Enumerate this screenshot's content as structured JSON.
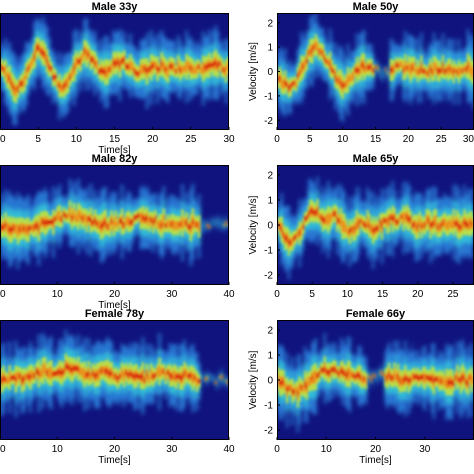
{
  "chart_data": [
    {
      "type": "heatmap",
      "title": "Male 33y",
      "xlabel": "Time[s]",
      "ylabel": "",
      "xlim": [
        0,
        30
      ],
      "ylim": [
        -2.4,
        2.4
      ],
      "xticks": [
        0,
        5,
        10,
        15,
        20,
        25,
        30
      ],
      "yticks": [],
      "colormap": "jet",
      "trace": {
        "x": [
          0,
          1,
          2,
          3,
          4,
          5,
          6,
          7,
          8,
          9,
          10,
          11,
          12,
          13,
          14,
          15,
          16,
          17,
          18,
          19,
          20,
          21,
          22,
          23,
          24,
          25,
          26,
          27,
          28,
          29,
          30
        ],
        "y": [
          0.2,
          -0.2,
          -0.8,
          -0.4,
          0.4,
          1.0,
          0.6,
          -0.2,
          -0.8,
          -0.3,
          0.3,
          0.8,
          0.5,
          0.1,
          0.0,
          0.3,
          0.4,
          0.2,
          0.0,
          0.1,
          0.2,
          0.2,
          0.1,
          0.1,
          0.2,
          0.2,
          0.1,
          0.2,
          0.3,
          0.2,
          0.1
        ],
        "gaps": []
      }
    },
    {
      "type": "heatmap",
      "title": "Male 50y",
      "xlabel": "",
      "ylabel": "Velocity [m/s]",
      "xlim": [
        0,
        30
      ],
      "ylim": [
        -2.4,
        2.4
      ],
      "xticks": [
        0,
        5,
        10,
        15,
        20,
        25,
        30
      ],
      "yticks": [
        2,
        1,
        0,
        -1,
        -2
      ],
      "colormap": "jet",
      "trace": {
        "x": [
          0,
          1,
          2,
          3,
          4,
          5,
          6,
          7,
          8,
          9,
          10,
          11,
          12,
          13,
          14,
          15,
          16,
          17,
          18,
          19,
          20,
          21,
          22,
          23,
          24,
          25,
          26,
          27,
          28,
          29,
          30
        ],
        "y": [
          -0.2,
          -0.5,
          -0.6,
          -0.4,
          0.3,
          0.8,
          1.0,
          0.7,
          0.2,
          -0.3,
          -0.6,
          -0.4,
          0.0,
          0.2,
          0.1,
          0.1,
          0.0,
          0.0,
          0.2,
          0.2,
          0.1,
          0.1,
          0.1,
          0.0,
          0.1,
          0.1,
          0.0,
          0.1,
          0.0,
          0.1,
          0.0
        ],
        "gaps": [
          [
            14.8,
            17.2
          ]
        ]
      }
    },
    {
      "type": "heatmap",
      "title": "Male 82y",
      "xlabel": "Time[s]",
      "ylabel": "",
      "xlim": [
        0,
        40
      ],
      "ylim": [
        -2.4,
        2.4
      ],
      "xticks": [
        0,
        10,
        20,
        30,
        40
      ],
      "yticks": [],
      "colormap": "jet",
      "trace": {
        "x": [
          0,
          2,
          4,
          6,
          8,
          10,
          12,
          14,
          16,
          18,
          20,
          22,
          24,
          26,
          28,
          30,
          32,
          34,
          36,
          38,
          40
        ],
        "y": [
          -0.1,
          -0.1,
          -0.2,
          -0.1,
          0.1,
          0.3,
          0.4,
          0.3,
          0.1,
          0.0,
          0.1,
          0.1,
          0.3,
          0.2,
          0.1,
          0.0,
          0.0,
          0.0,
          0.0,
          0.0,
          0.0
        ],
        "gaps": [
          [
            35,
            40
          ]
        ]
      }
    },
    {
      "type": "heatmap",
      "title": "Male 65y",
      "xlabel": "",
      "ylabel": "Velocity [m/s]",
      "xlim": [
        0,
        28
      ],
      "ylim": [
        -2.4,
        2.4
      ],
      "xticks": [
        0,
        5,
        10,
        15,
        20,
        25
      ],
      "yticks": [
        2,
        1,
        0,
        -1,
        -2
      ],
      "colormap": "jet",
      "trace": {
        "x": [
          0,
          1,
          2,
          3,
          4,
          5,
          6,
          7,
          8,
          9,
          10,
          11,
          12,
          13,
          14,
          15,
          16,
          17,
          18,
          19,
          20,
          21,
          22,
          23,
          24,
          25,
          26,
          27,
          28
        ],
        "y": [
          0.0,
          -0.4,
          -0.8,
          -0.4,
          0.2,
          0.6,
          0.4,
          0.2,
          0.4,
          0.2,
          -0.2,
          -0.1,
          0.2,
          0.0,
          -0.2,
          0.1,
          0.3,
          0.2,
          0.4,
          0.1,
          0.0,
          0.1,
          0.1,
          0.0,
          0.1,
          0.0,
          0.0,
          0.0,
          0.0
        ],
        "gaps": []
      }
    },
    {
      "type": "heatmap",
      "title": "Female 78y",
      "xlabel": "Time[s]",
      "ylabel": "",
      "xlim": [
        0,
        40
      ],
      "ylim": [
        -2.4,
        2.4
      ],
      "xticks": [
        0,
        10,
        20,
        30,
        40
      ],
      "yticks": [],
      "colormap": "jet",
      "trace": {
        "x": [
          0,
          2,
          4,
          6,
          8,
          10,
          12,
          14,
          16,
          18,
          20,
          22,
          24,
          26,
          28,
          30,
          32,
          34,
          36,
          38,
          40
        ],
        "y": [
          0.0,
          0.0,
          0.1,
          0.2,
          0.4,
          0.3,
          0.5,
          0.4,
          0.2,
          0.3,
          0.1,
          0.2,
          0.1,
          0.1,
          0.3,
          0.2,
          0.2,
          0.0,
          0.0,
          0.0,
          0.0
        ],
        "gaps": [
          [
            35,
            40
          ]
        ]
      }
    },
    {
      "type": "heatmap",
      "title": "Female 66y",
      "xlabel": "Time[s]",
      "ylabel": "Velocity [m/s]",
      "xlim": [
        0,
        40
      ],
      "ylim": [
        -2.4,
        2.4
      ],
      "xticks": [
        0,
        10,
        20,
        30
      ],
      "yticks": [
        2,
        1,
        0,
        -1,
        -2
      ],
      "colormap": "jet",
      "trace": {
        "x": [
          0,
          2,
          4,
          6,
          8,
          10,
          12,
          14,
          16,
          18,
          20,
          22,
          24,
          26,
          28,
          30,
          32,
          34,
          36
        ],
        "y": [
          0.0,
          -0.3,
          -0.5,
          -0.2,
          0.2,
          0.4,
          0.3,
          0.2,
          0.1,
          0.0,
          0.2,
          0.2,
          0.1,
          0.0,
          0.1,
          0.0,
          0.0,
          0.0,
          0.0
        ],
        "gaps": [
          [
            18,
            22
          ]
        ]
      }
    }
  ]
}
